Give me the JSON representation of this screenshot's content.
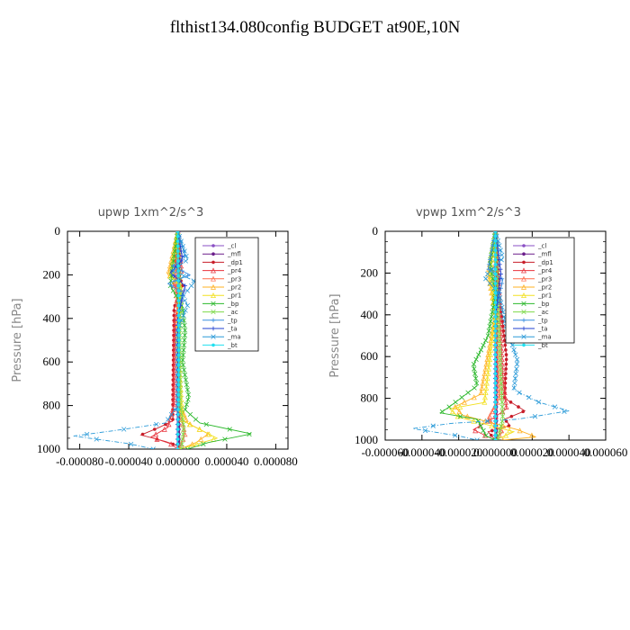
{
  "page": {
    "title": "flthist134.080config  BUDGET at90E,10N"
  },
  "legend_entries": [
    "_cl",
    "_mfl",
    "_dp1",
    "_pr4",
    "_pr3",
    "_pr2",
    "_pr1",
    "_bp",
    "_ac",
    "_tp",
    "_ta",
    "_ma",
    "_bt"
  ],
  "colors": {
    "_cl": "#8a4fc4",
    "_mfl": "#6a1c8a",
    "_dp1": "#c81e2a",
    "_pr4": "#e8323c",
    "_pr3": "#ff6a4a",
    "_pr2": "#ffb020",
    "_pr1": "#f2e020",
    "_bp": "#2cb82c",
    "_ac": "#7ed94a",
    "_tp": "#3a8fe0",
    "_ta": "#2040d0",
    "_ma": "#2a9ad8",
    "_bt": "#20e0f0"
  },
  "chart_data": [
    {
      "type": "line",
      "title": "upwp   1xm^2/s^3",
      "ylabel": "Pressure [hPa]",
      "xlabel": "",
      "xlim": [
        -9e-05,
        9e-05
      ],
      "ylim": [
        1000,
        0
      ],
      "y_inverted": true,
      "xticks": [
        "-0.000080",
        "-0.000040",
        "0.000000",
        "0.000040",
        "0.000080"
      ],
      "xtick_values": [
        -8e-05,
        -4e-05,
        0,
        4e-05,
        8e-05
      ],
      "yticks": [
        "0",
        "200",
        "400",
        "600",
        "800",
        "1000"
      ],
      "ytick_values": [
        0,
        200,
        400,
        600,
        800,
        1000
      ],
      "legend_position": "top-right",
      "series": [
        {
          "name": "_cl",
          "points": [
            [
              0,
              0
            ],
            [
              0,
              1000
            ]
          ]
        },
        {
          "name": "_mfl",
          "points": [
            [
              1e-06,
              0
            ],
            [
              1e-06,
              1000
            ]
          ]
        },
        {
          "name": "_dp1",
          "points": [
            [
              0,
              0
            ],
            [
              -2e-06,
              150
            ],
            [
              4e-06,
              250
            ],
            [
              -3e-06,
              350
            ],
            [
              -4e-06,
              760
            ],
            [
              -4e-06,
              870
            ],
            [
              -1.5e-05,
              900
            ],
            [
              -3e-05,
              935
            ],
            [
              -1e-05,
              965
            ],
            [
              0,
              985
            ],
            [
              2e-06,
              1000
            ]
          ]
        },
        {
          "name": "_pr4",
          "points": [
            [
              0,
              0
            ],
            [
              3e-06,
              180
            ],
            [
              -4e-06,
              240
            ],
            [
              3e-06,
              300
            ],
            [
              -2e-06,
              400
            ],
            [
              -3e-06,
              800
            ],
            [
              -8e-06,
              900
            ],
            [
              -2.2e-05,
              945
            ],
            [
              -6e-06,
              975
            ],
            [
              0,
              1000
            ]
          ]
        },
        {
          "name": "_pr3",
          "points": [
            [
              0,
              0
            ],
            [
              -2e-06,
              200
            ],
            [
              0,
              400
            ],
            [
              0,
              800
            ],
            [
              6e-06,
              930
            ],
            [
              2e-06,
              990
            ],
            [
              0,
              1000
            ]
          ]
        },
        {
          "name": "_pr2",
          "points": [
            [
              0,
              0
            ],
            [
              -8e-06,
              200
            ],
            [
              2e-06,
              230
            ],
            [
              0,
              500
            ],
            [
              2e-06,
              800
            ],
            [
              8e-06,
              880
            ],
            [
              2.5e-05,
              930
            ],
            [
              1.5e-05,
              970
            ],
            [
              2e-06,
              1000
            ]
          ]
        },
        {
          "name": "_pr1",
          "points": [
            [
              0,
              0
            ],
            [
              -6e-06,
              205
            ],
            [
              3e-06,
              260
            ],
            [
              0,
              500
            ],
            [
              4e-06,
              870
            ],
            [
              3.2e-05,
              950
            ],
            [
              8e-06,
              990
            ],
            [
              0,
              1000
            ]
          ]
        },
        {
          "name": "_bp",
          "points": [
            [
              0,
              0
            ],
            [
              -4e-06,
              150
            ],
            [
              -6e-06,
              250
            ],
            [
              4e-06,
              350
            ],
            [
              6e-06,
              460
            ],
            [
              4e-06,
              600
            ],
            [
              9e-06,
              760
            ],
            [
              6e-06,
              820
            ],
            [
              1.8e-05,
              880
            ],
            [
              6e-05,
              930
            ],
            [
              2.5e-05,
              970
            ],
            [
              8e-06,
              1000
            ]
          ]
        },
        {
          "name": "_ac",
          "points": [
            [
              0,
              0
            ],
            [
              2e-06,
              300
            ],
            [
              2e-06,
              800
            ],
            [
              5e-06,
              900
            ],
            [
              3e-06,
              1000
            ]
          ]
        },
        {
          "name": "_tp",
          "points": [
            [
              0,
              0
            ],
            [
              6e-06,
              110
            ],
            [
              -4e-06,
              160
            ],
            [
              1e-05,
              200
            ],
            [
              -8e-06,
              240
            ],
            [
              4e-06,
              280
            ],
            [
              0,
              400
            ],
            [
              0,
              800
            ],
            [
              0,
              1000
            ]
          ]
        },
        {
          "name": "_ta",
          "points": [
            [
              0,
              0
            ],
            [
              4e-06,
              130
            ],
            [
              -6e-06,
              190
            ],
            [
              6e-06,
              250
            ],
            [
              0,
              400
            ],
            [
              0,
              1000
            ]
          ]
        },
        {
          "name": "_ma",
          "points": [
            [
              0,
              0
            ],
            [
              8e-06,
              130
            ],
            [
              -4e-06,
              180
            ],
            [
              1.4e-05,
              230
            ],
            [
              4e-06,
              300
            ],
            [
              8e-06,
              340
            ],
            [
              0,
              450
            ],
            [
              0,
              800
            ],
            [
              -1e-05,
              880
            ],
            [
              -4.5e-05,
              910
            ],
            [
              -8.5e-05,
              940
            ],
            [
              -4e-05,
              975
            ],
            [
              -2e-05,
              1000
            ]
          ]
        },
        {
          "name": "_bt",
          "points": [
            [
              0,
              0
            ],
            [
              1e-06,
              500
            ],
            [
              0,
              1000
            ]
          ]
        }
      ]
    },
    {
      "type": "line",
      "title": "vpwp   1xm^2/s^3",
      "ylabel": "Pressure [hPa]",
      "xlabel": "",
      "xlim": [
        -6e-05,
        6e-05
      ],
      "ylim": [
        1000,
        0
      ],
      "y_inverted": true,
      "xticks": [
        "-0.000060",
        "-0.000040",
        "-0.000020",
        "0.000000",
        "0.000020",
        "0.000040",
        "0.000060"
      ],
      "xtick_values": [
        -6e-05,
        -4e-05,
        -2e-05,
        0,
        2e-05,
        4e-05,
        6e-05
      ],
      "yticks": [
        "0",
        "200",
        "400",
        "600",
        "800",
        "1000"
      ],
      "ytick_values": [
        0,
        200,
        400,
        600,
        800,
        1000
      ],
      "legend_position": "top-right",
      "series": [
        {
          "name": "_cl",
          "points": [
            [
              0,
              0
            ],
            [
              0,
              1000
            ]
          ]
        },
        {
          "name": "_mfl",
          "points": [
            [
              5e-07,
              0
            ],
            [
              5e-07,
              1000
            ]
          ]
        },
        {
          "name": "_dp1",
          "points": [
            [
              0,
              0
            ],
            [
              2e-06,
              300
            ],
            [
              6e-06,
              600
            ],
            [
              5e-06,
              800
            ],
            [
              1.6e-05,
              860
            ],
            [
              5e-06,
              900
            ],
            [
              8e-06,
              930
            ],
            [
              -4e-06,
              960
            ],
            [
              0,
              1000
            ]
          ]
        },
        {
          "name": "_pr4",
          "points": [
            [
              0,
              0
            ],
            [
              2e-06,
              300
            ],
            [
              4e-06,
              700
            ],
            [
              6e-06,
              850
            ],
            [
              -2e-06,
              900
            ],
            [
              -1.2e-05,
              950
            ],
            [
              -5e-06,
              980
            ],
            [
              0,
              1000
            ]
          ]
        },
        {
          "name": "_pr3",
          "points": [
            [
              0,
              0
            ],
            [
              0,
              400
            ],
            [
              2e-06,
              800
            ],
            [
              -4e-06,
              900
            ],
            [
              4e-06,
              960
            ],
            [
              0,
              1000
            ]
          ]
        },
        {
          "name": "_pr2",
          "points": [
            [
              0,
              0
            ],
            [
              -4e-06,
              200
            ],
            [
              0,
              400
            ],
            [
              -8e-06,
              780
            ],
            [
              -2.2e-05,
              840
            ],
            [
              -1.8e-05,
              880
            ],
            [
              1.2e-05,
              950
            ],
            [
              2.2e-05,
              985
            ],
            [
              4e-06,
              1000
            ]
          ]
        },
        {
          "name": "_pr1",
          "points": [
            [
              0,
              0
            ],
            [
              -3e-06,
              200
            ],
            [
              0,
              400
            ],
            [
              -6e-06,
              820
            ],
            [
              -2.5e-05,
              850
            ],
            [
              -2e-05,
              890
            ],
            [
              1e-05,
              960
            ],
            [
              0,
              1000
            ]
          ]
        },
        {
          "name": "_bp",
          "points": [
            [
              0,
              0
            ],
            [
              -3e-06,
              150
            ],
            [
              0,
              300
            ],
            [
              -4e-06,
              500
            ],
            [
              -1.2e-05,
              640
            ],
            [
              -1e-05,
              740
            ],
            [
              -2.5e-05,
              840
            ],
            [
              -3e-05,
              870
            ],
            [
              -1e-05,
              900
            ],
            [
              -5e-06,
              980
            ],
            [
              0,
              1000
            ]
          ]
        },
        {
          "name": "_ac",
          "points": [
            [
              0,
              0
            ],
            [
              2e-06,
              500
            ],
            [
              4e-06,
              900
            ],
            [
              1e-06,
              1000
            ]
          ]
        },
        {
          "name": "_tp",
          "points": [
            [
              0,
              0
            ],
            [
              -4e-06,
              180
            ],
            [
              4e-06,
              230
            ],
            [
              0,
              400
            ],
            [
              0,
              1000
            ]
          ]
        },
        {
          "name": "_ta",
          "points": [
            [
              0,
              0
            ],
            [
              3e-06,
              200
            ],
            [
              0,
              400
            ],
            [
              0,
              1000
            ]
          ]
        },
        {
          "name": "_ma",
          "points": [
            [
              0,
              0
            ],
            [
              4e-06,
              130
            ],
            [
              -6e-06,
              220
            ],
            [
              2e-06,
              300
            ],
            [
              6e-06,
              460
            ],
            [
              1.2e-05,
              620
            ],
            [
              1e-05,
              760
            ],
            [
              2.4e-05,
              820
            ],
            [
              4e-05,
              860
            ],
            [
              1.2e-05,
              900
            ],
            [
              -2.4e-05,
              920
            ],
            [
              -4.5e-05,
              945
            ],
            [
              -2e-05,
              980
            ],
            [
              -1e-05,
              1000
            ]
          ]
        },
        {
          "name": "_bt",
          "points": [
            [
              0,
              0
            ],
            [
              0,
              1000
            ]
          ]
        }
      ]
    }
  ]
}
